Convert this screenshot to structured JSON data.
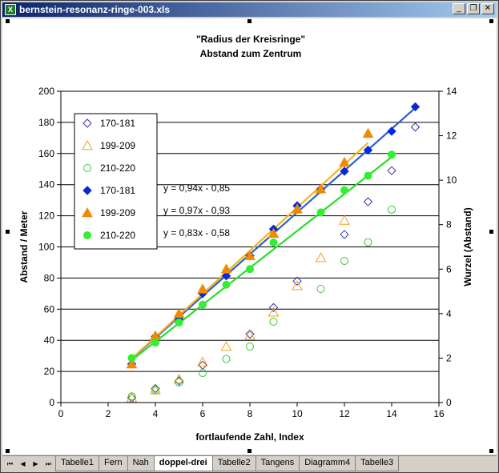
{
  "window": {
    "title": "bernstein-resonanz-ringe-003.xls",
    "app_icon": "excel-icon",
    "buttons": {
      "minimize": "_",
      "restore": "❐",
      "close": "✕"
    }
  },
  "sheet_nav": [
    "⏮",
    "◀",
    "▶",
    "⏭"
  ],
  "tabs": [
    {
      "label": "Tabelle1",
      "active": false
    },
    {
      "label": "Fern",
      "active": false
    },
    {
      "label": "Nah",
      "active": false
    },
    {
      "label": "doppel-drei",
      "active": true
    },
    {
      "label": "Tabelle2",
      "active": false
    },
    {
      "label": "Tangens",
      "active": false
    },
    {
      "label": "Diagramm4",
      "active": false
    },
    {
      "label": "Tabelle3",
      "active": false
    }
  ],
  "chart_data": {
    "type": "scatter",
    "title_line1": "\"Radius der Kreisringe\"",
    "title_line2": "Abstand zum Zentrum",
    "xlabel": "fortlaufende Zahl, Index",
    "ylabel": "Abstand / Meter",
    "y2label": "Wurzel (Abstand)",
    "xlim": [
      0,
      16
    ],
    "ylim": [
      0,
      200
    ],
    "y2lim": [
      0,
      14
    ],
    "xticks": [
      "0",
      "2",
      "4",
      "6",
      "8",
      "10",
      "12",
      "14",
      "16"
    ],
    "yticks": [
      "0",
      "20",
      "40",
      "60",
      "80",
      "100",
      "120",
      "140",
      "160",
      "180",
      "200"
    ],
    "y2ticks": [
      "0",
      "2",
      "4",
      "6",
      "8",
      "10",
      "12",
      "14"
    ],
    "grid": "horizontal",
    "legend_position": "top-left",
    "series": [
      {
        "name": "170-181",
        "axis": "primary",
        "marker": "diamond",
        "filled": false,
        "color": "#3333aa",
        "x": [
          3,
          4,
          5,
          6,
          8,
          9,
          10,
          12,
          13,
          14,
          15
        ],
        "y": [
          3,
          9,
          14,
          24,
          44,
          61,
          78,
          108,
          129,
          149,
          177
        ]
      },
      {
        "name": "199-209",
        "axis": "primary",
        "marker": "triangle",
        "filled": false,
        "color": "#f0a020",
        "x": [
          3,
          4,
          5,
          6,
          7,
          8,
          9,
          10,
          11,
          12
        ],
        "y": [
          3,
          8,
          15,
          26,
          36,
          43,
          58,
          75,
          93,
          117
        ]
      },
      {
        "name": "210-220",
        "axis": "primary",
        "marker": "circle",
        "filled": false,
        "color": "#33cc33",
        "x": [
          3,
          4,
          5,
          6,
          7,
          8,
          9,
          11,
          12,
          13,
          14
        ],
        "y": [
          4,
          8,
          13,
          19,
          28,
          36,
          52,
          73,
          91,
          103,
          124
        ]
      },
      {
        "name": "170-181",
        "axis": "secondary",
        "marker": "diamond",
        "filled": true,
        "color": "#0a28d8",
        "x": [
          3,
          4,
          5,
          6,
          7,
          8,
          9,
          10,
          11,
          12,
          13,
          14,
          15
        ],
        "y": [
          1.73,
          2.97,
          3.75,
          4.9,
          5.7,
          6.6,
          7.8,
          8.85,
          9.6,
          10.4,
          11.35,
          12.2,
          13.3
        ]
      },
      {
        "name": "199-209",
        "axis": "secondary",
        "marker": "triangle",
        "filled": true,
        "color": "#f08a00",
        "x": [
          3,
          4,
          5,
          6,
          7,
          8,
          9,
          10,
          11,
          12,
          13
        ],
        "y": [
          1.73,
          3.0,
          4.0,
          5.1,
          6.0,
          6.6,
          7.6,
          8.7,
          9.6,
          10.8,
          12.1
        ]
      },
      {
        "name": "210-220",
        "axis": "secondary",
        "marker": "circle",
        "filled": true,
        "color": "#33ee33",
        "x": [
          3,
          4,
          5,
          6,
          7,
          8,
          9,
          11,
          12,
          13,
          14
        ],
        "y": [
          2.0,
          2.7,
          3.6,
          4.4,
          5.3,
          6.0,
          7.2,
          8.55,
          9.55,
          10.2,
          11.15
        ]
      }
    ],
    "trendlines": [
      {
        "series": 3,
        "color": "#2f5fcf",
        "equation": "y = 0,94x - 0,85",
        "slope": 0.94,
        "intercept": -0.85,
        "x_range": [
          3,
          15
        ]
      },
      {
        "series": 4,
        "color": "#f0b41e",
        "equation": "y = 0,97x - 0,93",
        "slope": 0.97,
        "intercept": -0.93,
        "x_range": [
          3,
          13
        ]
      },
      {
        "series": 5,
        "color": "#28dd28",
        "equation": "y = 0,83x - 0,58",
        "slope": 0.83,
        "intercept": -0.58,
        "x_range": [
          3,
          14
        ]
      }
    ]
  }
}
